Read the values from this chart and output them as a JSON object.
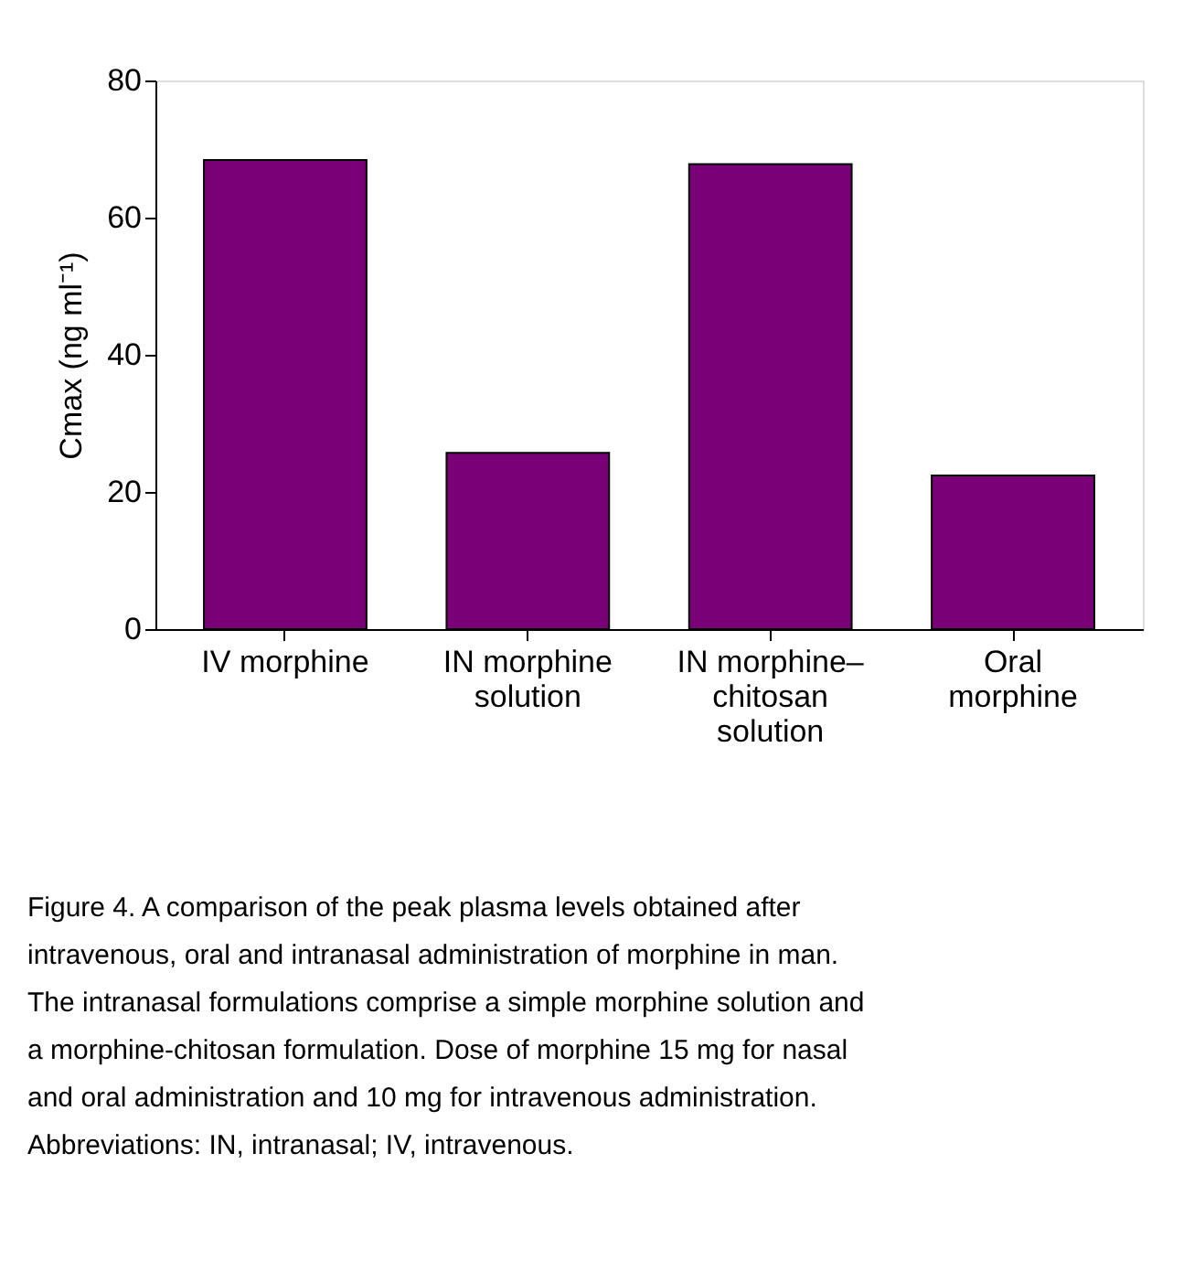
{
  "chart_data": {
    "type": "bar",
    "categories": [
      "IV morphine",
      "IN morphine solution",
      "IN morphine–chitosan solution",
      "Oral morphine"
    ],
    "values": [
      68.4,
      25.7,
      67.8,
      22.4
    ],
    "color": "#7a0077",
    "ylabel": "Cmax (ng ml⁻¹)",
    "ylim": [
      0,
      80
    ],
    "yticks": [
      0,
      20,
      40,
      60,
      80
    ],
    "grid": false,
    "annotations": [
      "Figure 4. A comparison of the peak plasma levels obtained after intravenous, oral and intranasal administration of morphine in man. The intranasal formulations comprise a simple morphine solution and a morphine-chitosan formulation. Dose of morphine 15 mg for nasal and oral administration and 10 mg for intravenous administration. Abbreviations: IN, intranasal; IV, intravenous."
    ]
  }
}
